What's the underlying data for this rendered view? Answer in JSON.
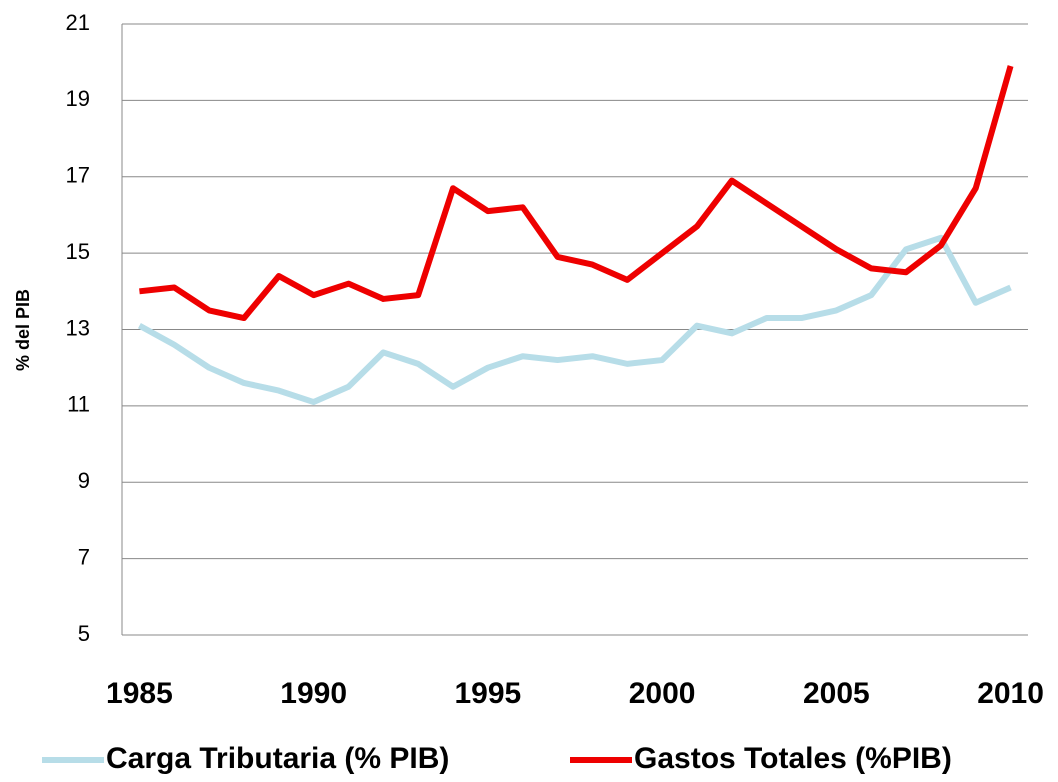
{
  "chart_data": {
    "type": "line",
    "y_label": "% del PIB",
    "x": [
      1985,
      1986,
      1987,
      1988,
      1989,
      1990,
      1991,
      1992,
      1993,
      1994,
      1995,
      1996,
      1997,
      1998,
      1999,
      2000,
      2001,
      2002,
      2003,
      2004,
      2005,
      2006,
      2007,
      2008,
      2009,
      2010
    ],
    "series": [
      {
        "name": "Carga Tributaria (% PIB)",
        "color": "#b7dde8",
        "values": [
          13.1,
          12.6,
          12.0,
          11.6,
          11.4,
          11.1,
          11.5,
          12.4,
          12.1,
          11.5,
          12.0,
          12.3,
          12.2,
          12.3,
          12.1,
          12.2,
          13.1,
          12.9,
          13.3,
          13.3,
          13.5,
          13.9,
          15.1,
          15.4,
          13.7,
          14.1
        ]
      },
      {
        "name": "Gastos Totales (%PIB)",
        "color": "#ee0000",
        "values": [
          14.0,
          14.1,
          13.5,
          13.3,
          14.4,
          13.9,
          14.2,
          13.8,
          13.9,
          16.7,
          16.1,
          16.2,
          14.9,
          14.7,
          14.3,
          15.0,
          15.7,
          16.9,
          16.3,
          15.7,
          15.1,
          14.6,
          14.5,
          15.2,
          16.7,
          19.9
        ]
      }
    ],
    "xlim": [
      1984.5,
      2010.5
    ],
    "xticks": [
      1985,
      1990,
      1995,
      2000,
      2005,
      2010
    ],
    "ylim": [
      5,
      21
    ],
    "yticks": [
      5,
      7,
      9,
      11,
      13,
      15,
      17,
      19,
      21
    ],
    "grid": true
  }
}
